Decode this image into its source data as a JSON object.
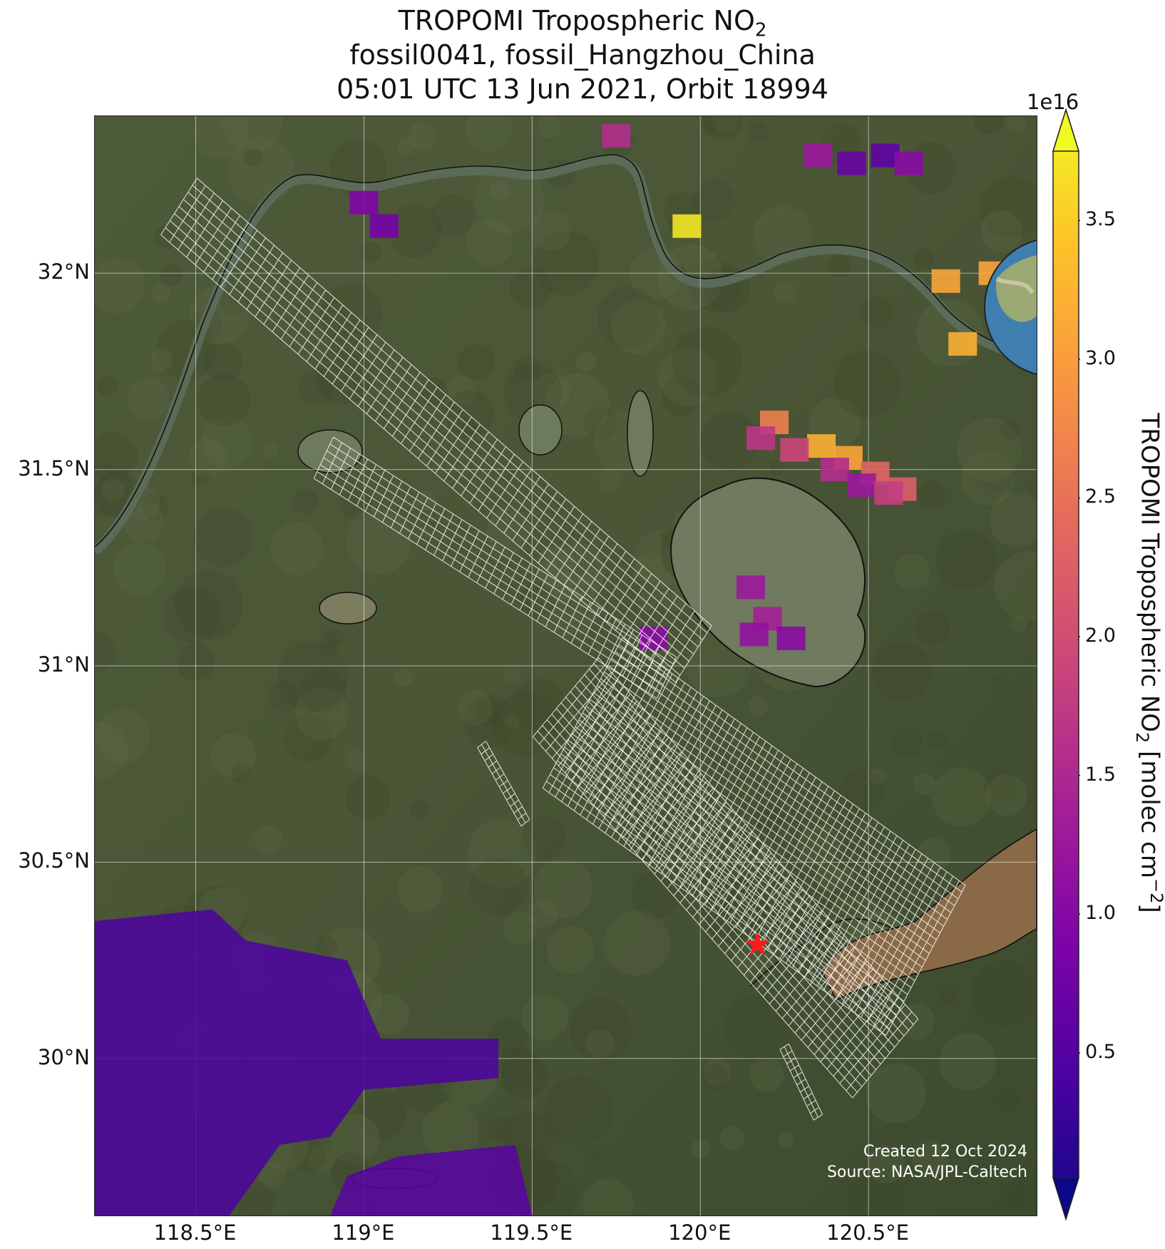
{
  "title": {
    "line1_prefix": "TROPOMI Tropospheric NO",
    "line1_sub": "2",
    "line2": "fossil0041, fossil_Hangzhou_China",
    "line3": "05:01 UTC 13 Jun 2021, Orbit 18994"
  },
  "map": {
    "extent": {
      "lon_min": 118.2,
      "lon_max": 121.0,
      "lat_min": 29.6,
      "lat_max": 32.4
    },
    "lat_ticks": [
      {
        "value": 32.0,
        "label": "32°N"
      },
      {
        "value": 31.5,
        "label": "31.5°N"
      },
      {
        "value": 31.0,
        "label": "31°N"
      },
      {
        "value": 30.5,
        "label": "30.5°N"
      },
      {
        "value": 30.0,
        "label": "30°N"
      }
    ],
    "lon_ticks": [
      {
        "value": 118.5,
        "label": "118.5°E"
      },
      {
        "value": 119.0,
        "label": "119°E"
      },
      {
        "value": 119.5,
        "label": "119.5°E"
      },
      {
        "value": 120.0,
        "label": "120°E"
      },
      {
        "value": 120.5,
        "label": "120.5°E"
      }
    ],
    "target_site": {
      "lon": 120.17,
      "lat": 30.29,
      "marker": "star-icon",
      "color": "#ff1a1a"
    },
    "gridlines": true,
    "background": "satellite imagery"
  },
  "colorbar": {
    "exponent_label": "1e16",
    "label_prefix": "TROPOMI Tropospheric NO",
    "label_sub": "2",
    "label_mid": " [molec cm",
    "label_sup": "−2",
    "label_end": "]",
    "vmin": 0.05,
    "vmax": 3.75,
    "ticks": [
      {
        "value": 0.5,
        "label": "0.5"
      },
      {
        "value": 1.0,
        "label": "1.0"
      },
      {
        "value": 1.5,
        "label": "1.5"
      },
      {
        "value": 2.0,
        "label": "2.0"
      },
      {
        "value": 2.5,
        "label": "2.5"
      },
      {
        "value": 3.0,
        "label": "3.0"
      },
      {
        "value": 3.5,
        "label": "3.5"
      }
    ],
    "colormap": "plasma",
    "extend": "both"
  },
  "no2_cells": [
    {
      "lon": 119.96,
      "lat": 32.12,
      "value": 3.6
    },
    {
      "lon": 120.73,
      "lat": 31.98,
      "value": 3.0
    },
    {
      "lon": 120.78,
      "lat": 31.82,
      "value": 3.1
    },
    {
      "lon": 120.87,
      "lat": 32.0,
      "value": 3.0
    },
    {
      "lon": 120.22,
      "lat": 31.62,
      "value": 2.6
    },
    {
      "lon": 120.36,
      "lat": 31.56,
      "value": 3.1
    },
    {
      "lon": 120.44,
      "lat": 31.53,
      "value": 3.0
    },
    {
      "lon": 120.52,
      "lat": 31.49,
      "value": 2.3
    },
    {
      "lon": 120.6,
      "lat": 31.45,
      "value": 2.2
    },
    {
      "lon": 120.18,
      "lat": 31.58,
      "value": 1.7
    },
    {
      "lon": 120.28,
      "lat": 31.55,
      "value": 1.9
    },
    {
      "lon": 120.4,
      "lat": 31.5,
      "value": 1.6
    },
    {
      "lon": 120.48,
      "lat": 31.46,
      "value": 1.3
    },
    {
      "lon": 120.56,
      "lat": 31.44,
      "value": 1.8
    },
    {
      "lon": 120.15,
      "lat": 31.2,
      "value": 1.3
    },
    {
      "lon": 120.2,
      "lat": 31.12,
      "value": 1.4
    },
    {
      "lon": 120.16,
      "lat": 31.08,
      "value": 1.2
    },
    {
      "lon": 120.27,
      "lat": 31.07,
      "value": 1.1
    },
    {
      "lon": 119.86,
      "lat": 31.07,
      "value": 1.1
    },
    {
      "lon": 119.0,
      "lat": 32.18,
      "value": 1.0
    },
    {
      "lon": 119.06,
      "lat": 32.12,
      "value": 0.9
    },
    {
      "lon": 119.75,
      "lat": 32.35,
      "value": 1.6
    },
    {
      "lon": 120.35,
      "lat": 32.3,
      "value": 1.3
    },
    {
      "lon": 120.45,
      "lat": 32.28,
      "value": 0.8
    },
    {
      "lon": 120.55,
      "lat": 32.3,
      "value": 0.7
    },
    {
      "lon": 120.62,
      "lat": 32.28,
      "value": 1.1
    }
  ],
  "no2_region_sw": {
    "value": 0.55
  },
  "credits": {
    "created": "Created 12 Oct 2024",
    "source": "Source: NASA/JPL-Caltech"
  },
  "inset_globe": {
    "marker": "star-icon",
    "marker_color": "#ff1a1a"
  }
}
